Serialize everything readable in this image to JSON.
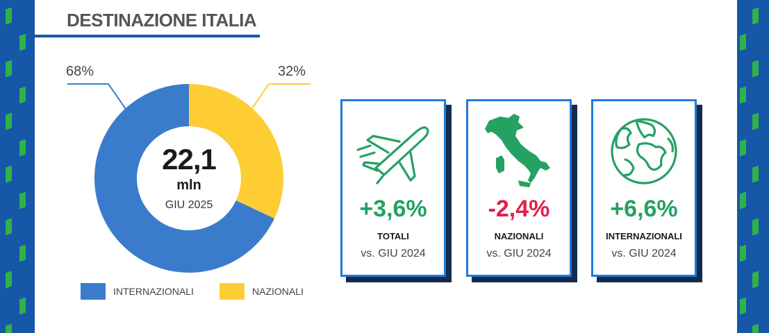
{
  "title": "DESTINAZIONE ITALIA",
  "colors": {
    "internazionali": "#3a7ccb",
    "nazionali": "#fdcd33",
    "positive": "#24a163",
    "negative": "#e0204d",
    "card_border": "#1f7ae0",
    "card_shadow": "#142b4d",
    "side_blue": "#1657a8",
    "side_green": "#2fb24a"
  },
  "chart_data": {
    "type": "pie",
    "categories": [
      "INTERNAZIONALI",
      "NAZIONALI"
    ],
    "values": [
      68,
      32
    ],
    "value_labels": [
      "68%",
      "32%"
    ],
    "center": {
      "value": "22,1",
      "unit": "mln",
      "period": "GIU 2025"
    },
    "legend_position": "bottom"
  },
  "legend": [
    {
      "label": "INTERNAZIONALI"
    },
    {
      "label": "NAZIONALI"
    }
  ],
  "cards": [
    {
      "icon": "airplane-icon",
      "value": "+3,6%",
      "trend": "positive",
      "label": "TOTALI",
      "comparison": "vs. GIU 2024"
    },
    {
      "icon": "italy-map-icon",
      "value": "-2,4%",
      "trend": "negative",
      "label": "NAZIONALI",
      "comparison": "vs. GIU 2024"
    },
    {
      "icon": "globe-icon",
      "value": "+6,6%",
      "trend": "positive",
      "label": "INTERNAZIONALI",
      "comparison": "vs. GIU 2024"
    }
  ]
}
